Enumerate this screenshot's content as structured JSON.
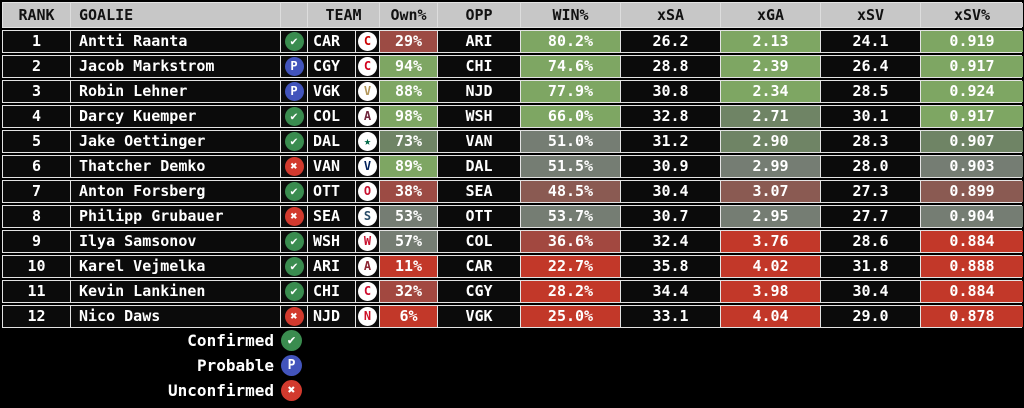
{
  "table": {
    "columns": {
      "rank": "RANK",
      "goalie": "GOALIE",
      "status": "",
      "team": "TEAM",
      "own": "Own%",
      "opp": "OPP",
      "win": "WIN%",
      "xsa": "xSA",
      "xga": "xGA",
      "xsv": "xSV",
      "xsvp": "xSV%"
    },
    "rows": [
      {
        "rank": "1",
        "goalie": "Antti Raanta",
        "status": "confirmed",
        "team": "CAR",
        "own": "29%",
        "own_color": "muted_red",
        "opp": "ARI",
        "win": "80.2%",
        "win_color": "green",
        "xsa": "26.2",
        "xga": "2.13",
        "xga_color": "green",
        "xsv": "24.1",
        "xsvp": "0.919",
        "xsvp_color": "green"
      },
      {
        "rank": "2",
        "goalie": "Jacob Markstrom",
        "status": "probable",
        "team": "CGY",
        "own": "94%",
        "own_color": "green",
        "opp": "CHI",
        "win": "74.6%",
        "win_color": "green",
        "xsa": "28.8",
        "xga": "2.39",
        "xga_color": "green",
        "xsv": "26.4",
        "xsvp": "0.917",
        "xsvp_color": "green"
      },
      {
        "rank": "3",
        "goalie": "Robin Lehner",
        "status": "probable",
        "team": "VGK",
        "own": "88%",
        "own_color": "green",
        "opp": "NJD",
        "win": "77.9%",
        "win_color": "green",
        "xsa": "30.8",
        "xga": "2.34",
        "xga_color": "green",
        "xsv": "28.5",
        "xsvp": "0.924",
        "xsvp_color": "green"
      },
      {
        "rank": "4",
        "goalie": "Darcy Kuemper",
        "status": "confirmed",
        "team": "COL",
        "own": "98%",
        "own_color": "green",
        "opp": "WSH",
        "win": "66.0%",
        "win_color": "green",
        "xsa": "32.8",
        "xga": "2.71",
        "xga_color": "gray_green",
        "xsv": "30.1",
        "xsvp": "0.917",
        "xsvp_color": "green"
      },
      {
        "rank": "5",
        "goalie": "Jake Oettinger",
        "status": "confirmed",
        "team": "DAL",
        "own": "73%",
        "own_color": "gray_green",
        "opp": "VAN",
        "win": "51.0%",
        "win_color": "gray",
        "xsa": "31.2",
        "xga": "2.90",
        "xga_color": "gray_green",
        "xsv": "28.3",
        "xsvp": "0.907",
        "xsvp_color": "gray_green"
      },
      {
        "rank": "6",
        "goalie": "Thatcher Demko",
        "status": "unconfirmed",
        "team": "VAN",
        "own": "89%",
        "own_color": "green",
        "opp": "DAL",
        "win": "51.5%",
        "win_color": "gray",
        "xsa": "30.9",
        "xga": "2.99",
        "xga_color": "gray",
        "xsv": "28.0",
        "xsvp": "0.903",
        "xsvp_color": "gray"
      },
      {
        "rank": "7",
        "goalie": "Anton Forsberg",
        "status": "confirmed",
        "team": "OTT",
        "own": "38%",
        "own_color": "muted_red",
        "opp": "SEA",
        "win": "48.5%",
        "win_color": "gray_red",
        "xsa": "30.4",
        "xga": "3.07",
        "xga_color": "gray_red",
        "xsv": "27.3",
        "xsvp": "0.899",
        "xsvp_color": "gray_red"
      },
      {
        "rank": "8",
        "goalie": "Philipp Grubauer",
        "status": "unconfirmed",
        "team": "SEA",
        "own": "53%",
        "own_color": "gray",
        "opp": "OTT",
        "win": "53.7%",
        "win_color": "gray",
        "xsa": "30.7",
        "xga": "2.95",
        "xga_color": "gray",
        "xsv": "27.7",
        "xsvp": "0.904",
        "xsvp_color": "gray"
      },
      {
        "rank": "9",
        "goalie": "Ilya Samsonov",
        "status": "confirmed",
        "team": "WSH",
        "own": "57%",
        "own_color": "gray",
        "opp": "COL",
        "win": "36.6%",
        "win_color": "dark_red",
        "xsa": "32.4",
        "xga": "3.76",
        "xga_color": "red",
        "xsv": "28.6",
        "xsvp": "0.884",
        "xsvp_color": "red"
      },
      {
        "rank": "10",
        "goalie": "Karel Vejmelka",
        "status": "confirmed",
        "team": "ARI",
        "own": "11%",
        "own_color": "red",
        "opp": "CAR",
        "win": "22.7%",
        "win_color": "red",
        "xsa": "35.8",
        "xga": "4.02",
        "xga_color": "red",
        "xsv": "31.8",
        "xsvp": "0.888",
        "xsvp_color": "red"
      },
      {
        "rank": "11",
        "goalie": "Kevin Lankinen",
        "status": "confirmed",
        "team": "CHI",
        "own": "32%",
        "own_color": "dark_red",
        "opp": "CGY",
        "win": "28.2%",
        "win_color": "red",
        "xsa": "34.4",
        "xga": "3.98",
        "xga_color": "red",
        "xsv": "30.4",
        "xsvp": "0.884",
        "xsvp_color": "red"
      },
      {
        "rank": "12",
        "goalie": "Nico Daws",
        "status": "unconfirmed",
        "team": "NJD",
        "own": "6%",
        "own_color": "red",
        "opp": "VGK",
        "win": "25.0%",
        "win_color": "red",
        "xsa": "33.1",
        "xga": "4.04",
        "xga_color": "red",
        "xsv": "29.0",
        "xsvp": "0.878",
        "xsvp_color": "red"
      }
    ]
  },
  "legend": [
    {
      "label": "Confirmed",
      "status": "confirmed"
    },
    {
      "label": "Probable",
      "status": "probable"
    },
    {
      "label": "Unconfirmed",
      "status": "unconfirmed"
    }
  ],
  "status_icons": {
    "confirmed": {
      "glyph": "✔",
      "color": "#3A8C4F",
      "name": "check-icon"
    },
    "probable": {
      "glyph": "P",
      "color": "#4254BC",
      "name": "probable-p-icon"
    },
    "unconfirmed": {
      "glyph": "✖",
      "color": "#D23A2E",
      "name": "x-icon"
    }
  },
  "team_logos": {
    "CAR": {
      "glyph": "C",
      "color": "#CC0000"
    },
    "CGY": {
      "glyph": "C",
      "color": "#D2001C"
    },
    "VGK": {
      "glyph": "V",
      "color": "#B4975A"
    },
    "COL": {
      "glyph": "A",
      "color": "#6F263D"
    },
    "DAL": {
      "glyph": "★",
      "color": "#006847"
    },
    "VAN": {
      "glyph": "V",
      "color": "#00205B"
    },
    "OTT": {
      "glyph": "O",
      "color": "#C8102E"
    },
    "SEA": {
      "glyph": "S",
      "color": "#2A4D69"
    },
    "WSH": {
      "glyph": "W",
      "color": "#C8102E"
    },
    "ARI": {
      "glyph": "A",
      "color": "#8C2633"
    },
    "CHI": {
      "glyph": "C",
      "color": "#CF0A2C"
    },
    "NJD": {
      "glyph": "N",
      "color": "#CE1126"
    }
  },
  "colors": {
    "page_bg": "#000000",
    "header_bg": "#C7C7C7",
    "row_bg": "#0B0B0B",
    "border": "#E3E3E3",
    "cell": {
      "green": "#7EA663",
      "gray_green": "#6F8465",
      "gray": "#757D73",
      "gray_red": "#8A5A52",
      "muted_red": "#9C4B44",
      "dark_red": "#A24840",
      "red": "#C23829",
      "black": "#0B0B0B"
    }
  }
}
